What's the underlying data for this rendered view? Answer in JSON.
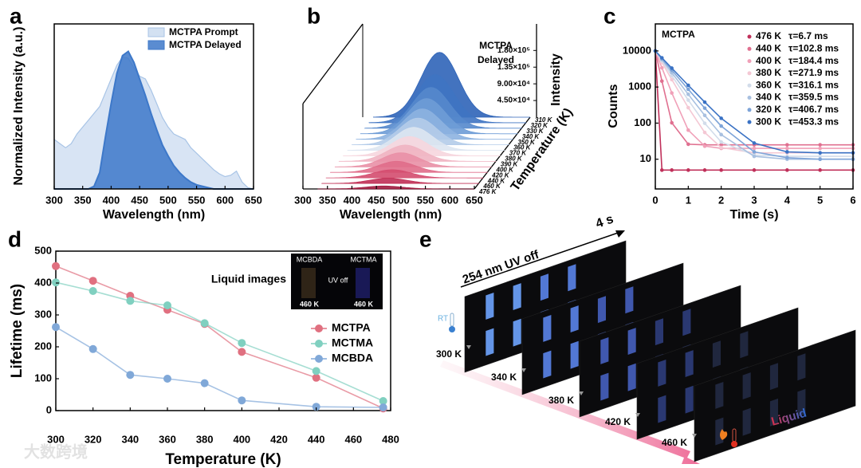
{
  "chart_data": [
    {
      "type": "area",
      "panel_label": "a",
      "ylabel": "Normalized Intensity (a.u.)",
      "xlabel": "Wavelength (nm)",
      "x": [
        300,
        310,
        320,
        330,
        340,
        350,
        360,
        370,
        380,
        390,
        400,
        410,
        420,
        430,
        440,
        450,
        460,
        470,
        480,
        490,
        500,
        510,
        520,
        530,
        540,
        550,
        560,
        570,
        580,
        590,
        600,
        610,
        620,
        630,
        640,
        650
      ],
      "series": [
        {
          "name": "MCTPA Prompt",
          "color": "#a8c4e6",
          "values": [
            0.36,
            0.33,
            0.3,
            0.33,
            0.4,
            0.45,
            0.5,
            0.55,
            0.6,
            0.7,
            0.8,
            0.9,
            0.96,
            0.95,
            0.88,
            0.82,
            0.8,
            0.72,
            0.62,
            0.52,
            0.45,
            0.4,
            0.38,
            0.36,
            0.3,
            0.26,
            0.22,
            0.18,
            0.14,
            0.11,
            0.09,
            0.1,
            0.13,
            0.05,
            0.01,
            0
          ]
        },
        {
          "name": "MCTPA Delayed",
          "color": "#3d78c9",
          "values": [
            0,
            0,
            0,
            0,
            0,
            0,
            0,
            0.02,
            0.12,
            0.38,
            0.62,
            0.84,
            0.97,
            1.0,
            0.92,
            0.8,
            0.68,
            0.55,
            0.43,
            0.32,
            0.24,
            0.17,
            0.12,
            0.08,
            0.05,
            0.03,
            0.02,
            0.01,
            0,
            0,
            0,
            0,
            0,
            0,
            0,
            0
          ]
        }
      ],
      "xlim": [
        300,
        650
      ],
      "xticks": [
        300,
        350,
        400,
        450,
        500,
        550,
        600,
        650
      ],
      "ylim": [
        0,
        1.2
      ]
    },
    {
      "type": "waterfall",
      "panel_label": "b",
      "annotation": [
        "MCTPA",
        "Delayed"
      ],
      "xlabel": "Wavelength (nm)",
      "zlabel": "Temperature (K)",
      "ylabel": "Intensity",
      "xlim": [
        300,
        650
      ],
      "xticks": [
        300,
        350,
        400,
        450,
        500,
        550,
        600,
        650
      ],
      "ylim": [
        0,
        200000
      ],
      "yticks": [
        {
          "value": 45000,
          "label": "4.50×10⁴"
        },
        {
          "value": 90000,
          "label": "9.00×10⁴"
        },
        {
          "value": 135000,
          "label": "1.35×10⁵"
        },
        {
          "value": 180000,
          "label": "1.80×10⁵"
        }
      ],
      "categories": [
        "310 K",
        "320 K",
        "330 K",
        "340 K",
        "350 K",
        "360 K",
        "370 K",
        "380 K",
        "390 K",
        "400 K",
        "420 K",
        "440 K",
        "460 K",
        "476 K"
      ],
      "values": [
        175000,
        130000,
        110000,
        95000,
        82000,
        72000,
        62000,
        52000,
        44000,
        38000,
        30000,
        22000,
        14000,
        8000
      ],
      "colors": [
        "#2f64b8",
        "#3f74c2",
        "#5588cc",
        "#6e9cd6",
        "#8db2e0",
        "#b4cce9",
        "#dde6f1",
        "#f6d6de",
        "#f0b4c2",
        "#e990a6",
        "#e06d8a",
        "#d44d6f",
        "#c03056",
        "#a01c40"
      ]
    },
    {
      "type": "decay",
      "panel_label": "c",
      "title": "MCTPA",
      "xlabel": "Time (s)",
      "ylabel": "Counts",
      "log_y": true,
      "x": [
        0,
        0.2,
        0.5,
        1,
        1.5,
        2,
        3,
        4,
        5,
        6
      ],
      "series": [
        {
          "name": "476 K",
          "lifetime": "τ=6.7 ms",
          "color": "#c0305a",
          "values": [
            10000,
            5,
            5,
            5,
            5,
            5,
            5,
            5,
            5,
            5
          ]
        },
        {
          "name": "440 K",
          "lifetime": "τ=102.8 ms",
          "color": "#e07090",
          "values": [
            10000,
            1455,
            102,
            26,
            25,
            25,
            25,
            25,
            25,
            25
          ]
        },
        {
          "name": "400 K",
          "lifetime": "τ=184.4 ms",
          "color": "#f0a0b8",
          "values": [
            10000,
            3400,
            684,
            64,
            23,
            20,
            20,
            20,
            20,
            20
          ]
        },
        {
          "name": "380 K",
          "lifetime": "τ=271.9 ms",
          "color": "#f4c8d4",
          "values": [
            10000,
            4805,
            1605,
            268,
            55,
            21,
            15,
            15,
            15,
            15
          ]
        },
        {
          "name": "360 K",
          "lifetime": "τ=316.1 ms",
          "color": "#d2dcea",
          "values": [
            10000,
            5322,
            2068,
            435,
            99,
            30,
            13,
            12,
            12,
            12
          ]
        },
        {
          "name": "340 K",
          "lifetime": "τ=359.5 ms",
          "color": "#a8c0e0",
          "values": [
            10000,
            5740,
            2500,
            629,
            164,
            48,
            12,
            10,
            10,
            10
          ]
        },
        {
          "name": "320 K",
          "lifetime": "τ=406.7 ms",
          "color": "#7ea4d8",
          "values": [
            10000,
            6120,
            2935,
            865,
            260,
            83,
            16,
            11,
            10,
            10
          ]
        },
        {
          "name": "300 K",
          "lifetime": "τ=453.3 ms",
          "color": "#3a72c4",
          "values": [
            10000,
            6445,
            3335,
            1115,
            381,
            136,
            28,
            16,
            15,
            15
          ]
        }
      ],
      "xlim": [
        0,
        6
      ],
      "xticks": [
        0,
        1,
        2,
        3,
        4,
        5,
        6
      ],
      "ylim": [
        1.5,
        56000
      ],
      "yticks": [
        10,
        100,
        1000,
        10000
      ]
    },
    {
      "type": "line",
      "panel_label": "d",
      "xlabel": "Temperature (K)",
      "ylabel": "Lifetime (ms)",
      "x": [
        300,
        320,
        340,
        360,
        380,
        400,
        440,
        476
      ],
      "series": [
        {
          "name": "MCTPA",
          "color": "#e07080",
          "values": [
            453,
            407,
            360,
            316,
            272,
            184,
            103,
            7
          ]
        },
        {
          "name": "MCTMA",
          "color": "#80d0c0",
          "values": [
            402,
            375,
            344,
            330,
            274,
            212,
            124,
            30
          ]
        },
        {
          "name": "MCBDA",
          "color": "#80a8d8",
          "values": [
            262,
            193,
            112,
            100,
            86,
            32,
            12,
            10
          ]
        }
      ],
      "xlim": [
        300,
        480
      ],
      "xticks": [
        300,
        320,
        340,
        360,
        380,
        400,
        420,
        440,
        460,
        480
      ],
      "ylim": [
        0,
        500
      ],
      "yticks": [
        0,
        100,
        200,
        300,
        400,
        500
      ],
      "inset": {
        "title": "Liquid images",
        "labels": [
          "MCBDA",
          "MCTMA"
        ],
        "caption": "UV off",
        "temperatures": [
          "460 K",
          "460 K"
        ]
      }
    }
  ],
  "panel_e": {
    "panel_label": "e",
    "duration": "4 s",
    "condition": "254 nm UV off",
    "start_label": "RT",
    "temperatures": [
      "300 K",
      "340 K",
      "380 K",
      "420 K",
      "460 K"
    ],
    "state": "Liquid"
  },
  "watermark": "大数跨境"
}
